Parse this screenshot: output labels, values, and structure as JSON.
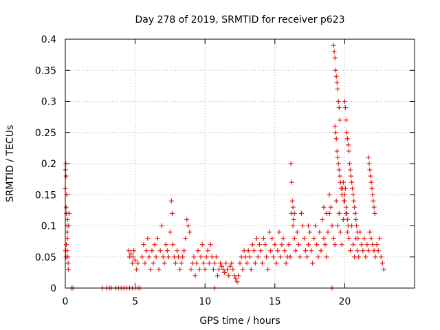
{
  "chart_data": {
    "type": "scatter",
    "title": "Day 278 of 2019, SRMTID for receiver p623",
    "xlabel": "GPS time / hours",
    "ylabel": "SRMTID / TECUs",
    "xlim": [
      0,
      25
    ],
    "ylim": [
      0,
      0.4
    ],
    "xticks": [
      0,
      5,
      10,
      15,
      20
    ],
    "yticks": [
      0,
      0.05,
      0.1,
      0.15,
      0.2,
      0.25,
      0.3,
      0.35,
      0.4
    ],
    "xtick_labels": [
      "0",
      "5",
      "10",
      "15",
      "20"
    ],
    "ytick_labels": [
      "0",
      "0.05",
      "0.1",
      "0.15",
      "0.2",
      "0.25",
      "0.3",
      "0.35",
      "0.4"
    ],
    "grid": true,
    "marker": "+",
    "color": "#e8170f",
    "series": [
      {
        "name": "p623",
        "points": [
          [
            0.0,
            0.16
          ],
          [
            0.02,
            0.19
          ],
          [
            0.04,
            0.2
          ],
          [
            0.05,
            0.18
          ],
          [
            0.06,
            0.13
          ],
          [
            0.08,
            0.12
          ],
          [
            0.1,
            0.15
          ],
          [
            0.12,
            0.1
          ],
          [
            0.14,
            0.09
          ],
          [
            0.16,
            0.11
          ],
          [
            0.02,
            0.06
          ],
          [
            0.05,
            0.05
          ],
          [
            0.08,
            0.07
          ],
          [
            0.12,
            0.06
          ],
          [
            0.15,
            0.08
          ],
          [
            0.18,
            0.05
          ],
          [
            0.2,
            0.04
          ],
          [
            0.22,
            0.03
          ],
          [
            0.24,
            0.1
          ],
          [
            0.26,
            0.12
          ],
          [
            0.45,
            0.0
          ],
          [
            0.55,
            0.0
          ],
          [
            2.65,
            0.0
          ],
          [
            2.95,
            0.0
          ],
          [
            3.15,
            0.0
          ],
          [
            3.3,
            0.0
          ],
          [
            3.6,
            0.0
          ],
          [
            3.8,
            0.0
          ],
          [
            4.0,
            0.0
          ],
          [
            4.2,
            0.0
          ],
          [
            4.4,
            0.0
          ],
          [
            4.6,
            0.0
          ],
          [
            4.8,
            0.0
          ],
          [
            5.0,
            0.0
          ],
          [
            5.2,
            0.0
          ],
          [
            5.35,
            0.0
          ],
          [
            10.7,
            0.0
          ],
          [
            19.1,
            0.0
          ],
          [
            4.55,
            0.06
          ],
          [
            4.6,
            0.05
          ],
          [
            4.7,
            0.055
          ],
          [
            4.8,
            0.04
          ],
          [
            4.85,
            0.05
          ],
          [
            4.9,
            0.06
          ],
          [
            5.0,
            0.045
          ],
          [
            5.1,
            0.03
          ],
          [
            5.2,
            0.04
          ],
          [
            5.5,
            0.05
          ],
          [
            5.6,
            0.07
          ],
          [
            5.7,
            0.04
          ],
          [
            5.8,
            0.06
          ],
          [
            5.9,
            0.08
          ],
          [
            6.0,
            0.05
          ],
          [
            6.1,
            0.03
          ],
          [
            6.2,
            0.06
          ],
          [
            6.3,
            0.04
          ],
          [
            6.4,
            0.07
          ],
          [
            6.5,
            0.05
          ],
          [
            6.6,
            0.08
          ],
          [
            6.7,
            0.03
          ],
          [
            6.8,
            0.06
          ],
          [
            6.9,
            0.1
          ],
          [
            7.0,
            0.05
          ],
          [
            7.1,
            0.04
          ],
          [
            7.2,
            0.07
          ],
          [
            7.3,
            0.06
          ],
          [
            7.4,
            0.05
          ],
          [
            7.5,
            0.09
          ],
          [
            7.6,
            0.14
          ],
          [
            7.65,
            0.12
          ],
          [
            7.7,
            0.07
          ],
          [
            7.8,
            0.05
          ],
          [
            7.9,
            0.04
          ],
          [
            8.0,
            0.06
          ],
          [
            8.1,
            0.05
          ],
          [
            8.2,
            0.03
          ],
          [
            8.3,
            0.04
          ],
          [
            8.4,
            0.05
          ],
          [
            8.5,
            0.06
          ],
          [
            8.6,
            0.08
          ],
          [
            8.7,
            0.11
          ],
          [
            8.8,
            0.1
          ],
          [
            8.9,
            0.09
          ],
          [
            9.0,
            0.03
          ],
          [
            9.1,
            0.04
          ],
          [
            9.2,
            0.05
          ],
          [
            9.3,
            0.02
          ],
          [
            9.4,
            0.04
          ],
          [
            9.5,
            0.06
          ],
          [
            9.6,
            0.03
          ],
          [
            9.7,
            0.05
          ],
          [
            9.8,
            0.07
          ],
          [
            9.9,
            0.04
          ],
          [
            10.0,
            0.03
          ],
          [
            10.1,
            0.05
          ],
          [
            10.2,
            0.06
          ],
          [
            10.3,
            0.04
          ],
          [
            10.4,
            0.07
          ],
          [
            10.5,
            0.05
          ],
          [
            10.6,
            0.03
          ],
          [
            10.7,
            0.04
          ],
          [
            10.8,
            0.05
          ],
          [
            10.9,
            0.02
          ],
          [
            11.0,
            0.03
          ],
          [
            11.1,
            0.04
          ],
          [
            11.2,
            0.035
          ],
          [
            11.3,
            0.03
          ],
          [
            11.4,
            0.025
          ],
          [
            11.5,
            0.04
          ],
          [
            11.6,
            0.03
          ],
          [
            11.7,
            0.02
          ],
          [
            11.8,
            0.035
          ],
          [
            11.9,
            0.04
          ],
          [
            12.0,
            0.03
          ],
          [
            12.1,
            0.02
          ],
          [
            12.2,
            0.015
          ],
          [
            12.3,
            0.01
          ],
          [
            12.4,
            0.02
          ],
          [
            12.5,
            0.04
          ],
          [
            12.6,
            0.05
          ],
          [
            12.7,
            0.03
          ],
          [
            12.8,
            0.06
          ],
          [
            12.9,
            0.05
          ],
          [
            13.0,
            0.04
          ],
          [
            13.1,
            0.06
          ],
          [
            13.2,
            0.05
          ],
          [
            13.3,
            0.03
          ],
          [
            13.4,
            0.07
          ],
          [
            13.5,
            0.06
          ],
          [
            13.6,
            0.04
          ],
          [
            13.7,
            0.08
          ],
          [
            13.8,
            0.05
          ],
          [
            13.9,
            0.07
          ],
          [
            14.0,
            0.06
          ],
          [
            14.1,
            0.04
          ],
          [
            14.2,
            0.08
          ],
          [
            14.3,
            0.07
          ],
          [
            14.4,
            0.05
          ],
          [
            14.5,
            0.03
          ],
          [
            14.6,
            0.09
          ],
          [
            14.7,
            0.06
          ],
          [
            14.8,
            0.08
          ],
          [
            14.9,
            0.05
          ],
          [
            15.0,
            0.07
          ],
          [
            15.1,
            0.04
          ],
          [
            15.2,
            0.06
          ],
          [
            15.3,
            0.09
          ],
          [
            15.4,
            0.05
          ],
          [
            15.5,
            0.07
          ],
          [
            15.6,
            0.08
          ],
          [
            15.7,
            0.06
          ],
          [
            15.8,
            0.04
          ],
          [
            15.9,
            0.05
          ],
          [
            16.0,
            0.07
          ],
          [
            16.1,
            0.05
          ],
          [
            16.2,
            0.12
          ],
          [
            16.3,
            0.1
          ],
          [
            16.4,
            0.08
          ],
          [
            16.5,
            0.06
          ],
          [
            16.6,
            0.09
          ],
          [
            16.7,
            0.07
          ],
          [
            16.8,
            0.05
          ],
          [
            16.9,
            0.12
          ],
          [
            17.0,
            0.1
          ],
          [
            17.1,
            0.08
          ],
          [
            17.2,
            0.06
          ],
          [
            17.3,
            0.05
          ],
          [
            17.4,
            0.07
          ],
          [
            17.5,
            0.09
          ],
          [
            17.6,
            0.06
          ],
          [
            17.7,
            0.04
          ],
          [
            17.8,
            0.08
          ],
          [
            17.9,
            0.1
          ],
          [
            18.0,
            0.07
          ],
          [
            18.1,
            0.05
          ],
          [
            18.2,
            0.09
          ],
          [
            18.3,
            0.06
          ],
          [
            18.4,
            0.11
          ],
          [
            18.5,
            0.08
          ],
          [
            18.6,
            0.07
          ],
          [
            18.7,
            0.05
          ],
          [
            18.8,
            0.09
          ],
          [
            18.9,
            0.12
          ],
          [
            19.0,
            0.13
          ],
          [
            19.1,
            0.1
          ],
          [
            19.2,
            0.08
          ],
          [
            19.3,
            0.07
          ],
          [
            19.4,
            0.14
          ],
          [
            19.5,
            0.1
          ],
          [
            19.6,
            0.12
          ],
          [
            19.7,
            0.09
          ],
          [
            19.8,
            0.07
          ],
          [
            19.9,
            0.11
          ],
          [
            20.0,
            0.14
          ],
          [
            20.1,
            0.12
          ],
          [
            20.2,
            0.09
          ],
          [
            20.3,
            0.08
          ],
          [
            20.4,
            0.06
          ],
          [
            20.5,
            0.1
          ],
          [
            20.6,
            0.07
          ],
          [
            20.7,
            0.05
          ],
          [
            20.8,
            0.08
          ],
          [
            20.9,
            0.06
          ],
          [
            21.0,
            0.05
          ],
          [
            21.1,
            0.09
          ],
          [
            21.2,
            0.07
          ],
          [
            21.3,
            0.06
          ],
          [
            21.4,
            0.08
          ],
          [
            21.5,
            0.05
          ],
          [
            21.6,
            0.07
          ],
          [
            21.7,
            0.06
          ],
          [
            21.8,
            0.09
          ],
          [
            21.9,
            0.08
          ],
          [
            22.0,
            0.07
          ],
          [
            22.1,
            0.06
          ],
          [
            22.2,
            0.05
          ],
          [
            22.3,
            0.07
          ],
          [
            22.4,
            0.06
          ],
          [
            22.5,
            0.08
          ],
          [
            22.6,
            0.05
          ],
          [
            22.7,
            0.04
          ],
          [
            22.8,
            0.03
          ],
          [
            16.15,
            0.2
          ],
          [
            16.2,
            0.17
          ],
          [
            16.25,
            0.14
          ],
          [
            16.3,
            0.13
          ],
          [
            16.35,
            0.11
          ],
          [
            16.4,
            0.12
          ],
          [
            17.4,
            0.1
          ],
          [
            18.5,
            0.13
          ],
          [
            18.7,
            0.12
          ],
          [
            18.9,
            0.15
          ],
          [
            19.2,
            0.39
          ],
          [
            19.25,
            0.38
          ],
          [
            19.3,
            0.37
          ],
          [
            19.35,
            0.35
          ],
          [
            19.4,
            0.34
          ],
          [
            19.45,
            0.33
          ],
          [
            19.5,
            0.32
          ],
          [
            19.55,
            0.3
          ],
          [
            19.6,
            0.29
          ],
          [
            19.65,
            0.27
          ],
          [
            19.3,
            0.26
          ],
          [
            19.35,
            0.25
          ],
          [
            19.4,
            0.24
          ],
          [
            19.45,
            0.22
          ],
          [
            19.5,
            0.21
          ],
          [
            19.55,
            0.2
          ],
          [
            19.6,
            0.19
          ],
          [
            19.65,
            0.18
          ],
          [
            19.7,
            0.17
          ],
          [
            19.75,
            0.16
          ],
          [
            19.8,
            0.15
          ],
          [
            19.85,
            0.16
          ],
          [
            19.9,
            0.17
          ],
          [
            19.95,
            0.14
          ],
          [
            20.0,
            0.15
          ],
          [
            20.05,
            0.16
          ],
          [
            20.1,
            0.13
          ],
          [
            20.15,
            0.12
          ],
          [
            20.2,
            0.11
          ],
          [
            20.25,
            0.1
          ],
          [
            20.0,
            0.3
          ],
          [
            20.05,
            0.29
          ],
          [
            20.1,
            0.27
          ],
          [
            20.15,
            0.25
          ],
          [
            20.2,
            0.24
          ],
          [
            20.25,
            0.23
          ],
          [
            20.3,
            0.22
          ],
          [
            20.35,
            0.2
          ],
          [
            20.4,
            0.19
          ],
          [
            20.45,
            0.18
          ],
          [
            20.5,
            0.17
          ],
          [
            20.55,
            0.16
          ],
          [
            20.6,
            0.15
          ],
          [
            20.65,
            0.14
          ],
          [
            20.7,
            0.13
          ],
          [
            20.75,
            0.12
          ],
          [
            20.8,
            0.11
          ],
          [
            20.85,
            0.1
          ],
          [
            20.9,
            0.09
          ],
          [
            20.95,
            0.08
          ],
          [
            21.7,
            0.21
          ],
          [
            21.75,
            0.2
          ],
          [
            21.8,
            0.19
          ],
          [
            21.85,
            0.18
          ],
          [
            21.9,
            0.17
          ],
          [
            21.95,
            0.16
          ],
          [
            22.0,
            0.15
          ],
          [
            22.05,
            0.14
          ],
          [
            22.1,
            0.13
          ],
          [
            22.15,
            0.12
          ]
        ]
      }
    ]
  }
}
